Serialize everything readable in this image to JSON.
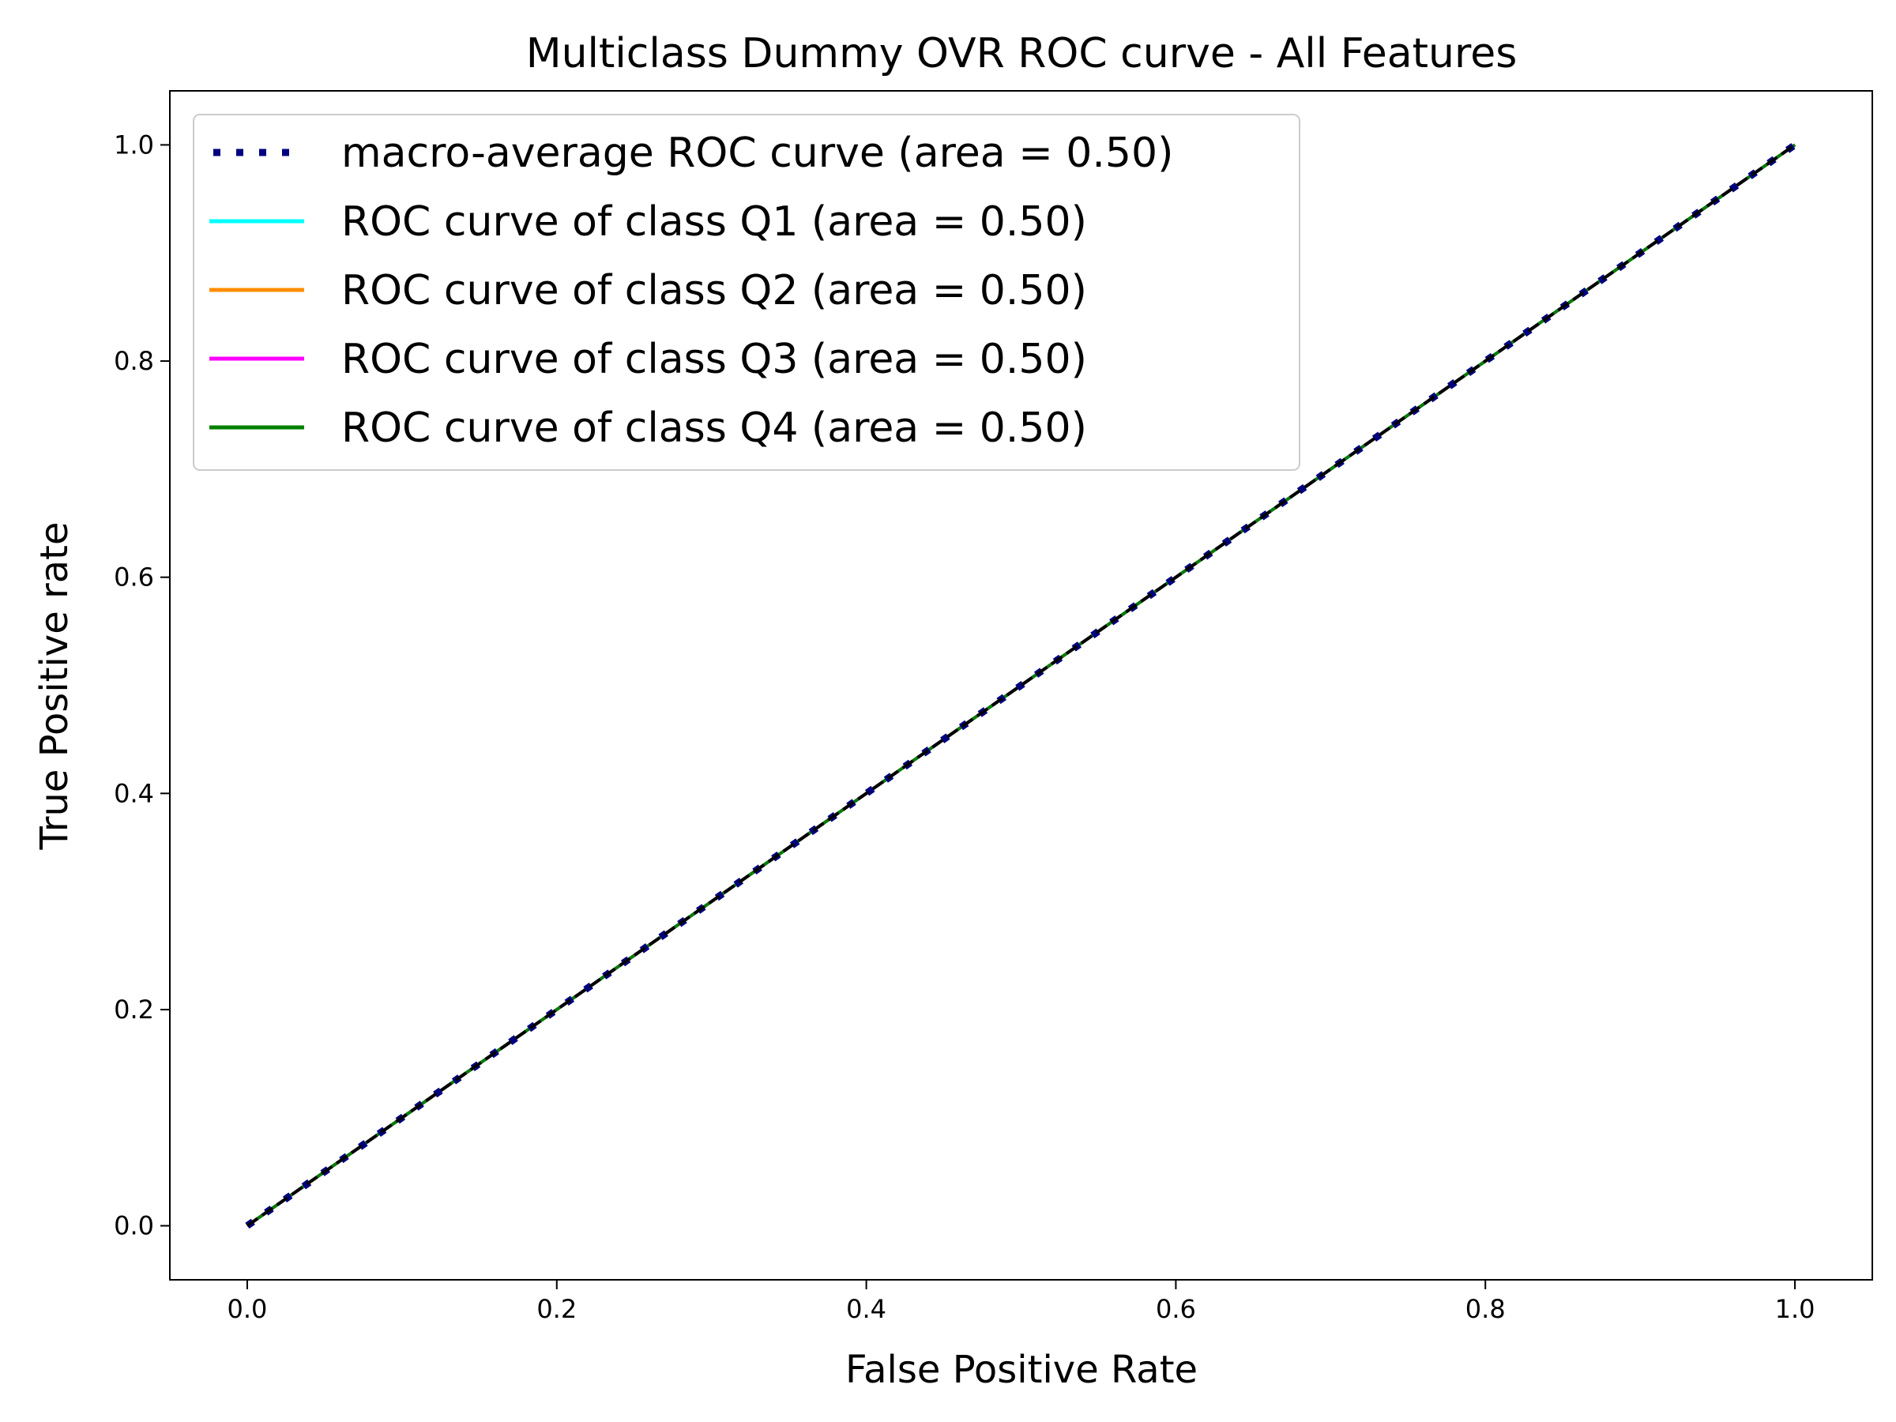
{
  "chart_data": {
    "type": "line",
    "title": "Multiclass Dummy OVR ROC curve - All Features",
    "xlabel": "False Positive Rate",
    "ylabel": "True Positive rate",
    "xlim": [
      -0.05,
      1.05
    ],
    "ylim": [
      -0.05,
      1.05
    ],
    "xticks": [
      "0.0",
      "0.2",
      "0.4",
      "0.6",
      "0.8",
      "1.0"
    ],
    "yticks": [
      "0.0",
      "0.2",
      "0.4",
      "0.6",
      "0.8",
      "1.0"
    ],
    "grid": false,
    "legend_position": "upper-left",
    "series": [
      {
        "name": "macro-average ROC curve (area = 0.50)",
        "color": "#000080",
        "style": "dotted",
        "x": [
          0.0,
          1.0
        ],
        "y": [
          0.0,
          1.0
        ]
      },
      {
        "name": "ROC curve of class Q1 (area = 0.50)",
        "color": "#00ffff",
        "style": "solid",
        "x": [
          0.0,
          1.0
        ],
        "y": [
          0.0,
          1.0
        ]
      },
      {
        "name": "ROC curve of class Q2 (area = 0.50)",
        "color": "#ff8c00",
        "style": "solid",
        "x": [
          0.0,
          1.0
        ],
        "y": [
          0.0,
          1.0
        ]
      },
      {
        "name": "ROC curve of class Q3 (area = 0.50)",
        "color": "#ff00ff",
        "style": "solid",
        "x": [
          0.0,
          1.0
        ],
        "y": [
          0.0,
          1.0
        ]
      },
      {
        "name": "ROC curve of class Q4 (area = 0.50)",
        "color": "#008000",
        "style": "solid",
        "x": [
          0.0,
          1.0
        ],
        "y": [
          0.0,
          1.0
        ]
      }
    ],
    "reference_line": {
      "color": "#000000",
      "style": "dashed",
      "x": [
        0.0,
        1.0
      ],
      "y": [
        0.0,
        1.0
      ]
    }
  }
}
